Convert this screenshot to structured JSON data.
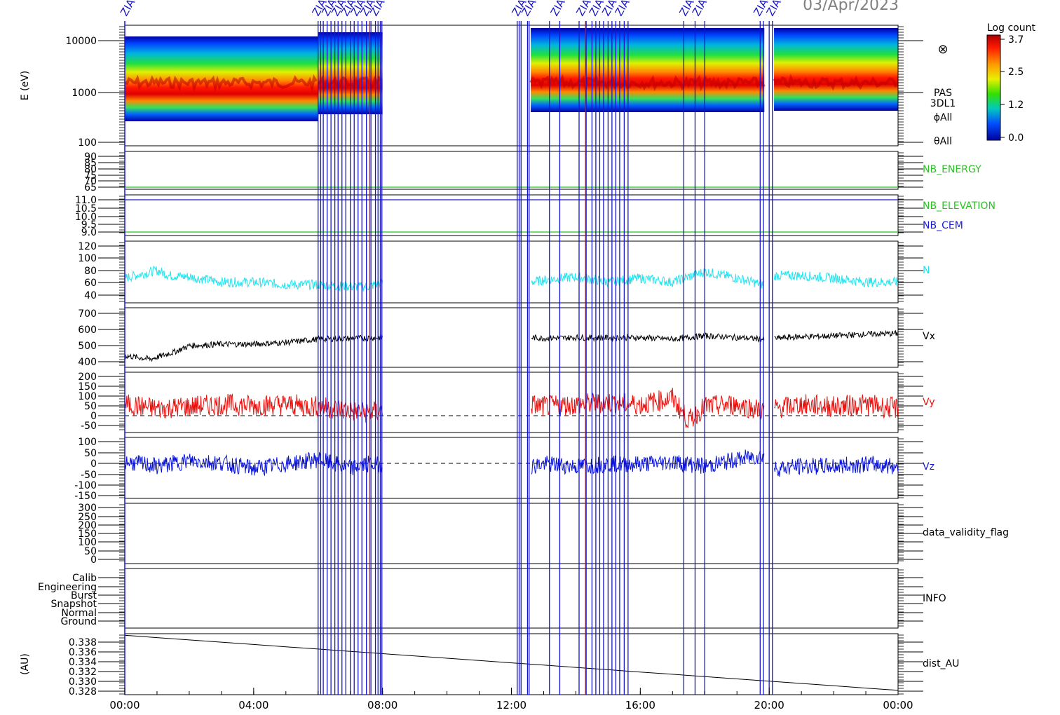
{
  "header": {
    "date": "03/Apr/2023"
  },
  "colorbar": {
    "title": "Log count",
    "ticks": [
      "3.7",
      "2.5",
      "1.2",
      "0.0"
    ],
    "range": [
      0.0,
      3.7
    ]
  },
  "x_ticks": [
    "00:00",
    "04:00",
    "08:00",
    "12:00",
    "16:00",
    "20:00",
    "00:00"
  ],
  "event_marker_label": "ZIAC",
  "event_vlines_hours": [
    6.0,
    6.08,
    6.16,
    6.28,
    6.4,
    6.52,
    6.62,
    6.74,
    6.86,
    7.0,
    7.12,
    7.24,
    7.36,
    7.5,
    7.64,
    7.78,
    7.86,
    7.93,
    7.98,
    12.18,
    12.24,
    12.3,
    12.5,
    12.55,
    13.18,
    13.5,
    14.1,
    14.32,
    14.5,
    14.62,
    14.74,
    14.86,
    15.0,
    15.12,
    15.24,
    15.36,
    15.5,
    15.62,
    17.35,
    17.7,
    18.0,
    19.72,
    19.82,
    20.0,
    20.1
  ],
  "event_vlines_red_hours": [
    7.6,
    14.3
  ],
  "panels": [
    {
      "id": "pas",
      "ylabel": "E (eV)",
      "yticks": [
        "10000",
        "1000",
        "100"
      ],
      "scale": "log",
      "right_labels": [
        "PAS",
        "3DL1",
        "ϕAll",
        "θAll"
      ],
      "symbol": "⊗"
    },
    {
      "id": "nb_energy",
      "yticks": [
        "90",
        "85",
        "80",
        "75",
        "70",
        "65"
      ],
      "right_labels": [
        "NB_ENERGY"
      ]
    },
    {
      "id": "nb_elev",
      "yticks": [
        "11.0",
        "10.5",
        "10.0",
        "9.5",
        "9.0"
      ],
      "right_labels": [
        "NB_ELEVATION",
        "NB_CEM"
      ]
    },
    {
      "id": "n",
      "yticks": [
        "120",
        "100",
        "80",
        "60",
        "40"
      ],
      "right_labels": [
        "N"
      ]
    },
    {
      "id": "vx",
      "yticks": [
        "700",
        "600",
        "500",
        "400"
      ],
      "right_labels": [
        "Vx"
      ]
    },
    {
      "id": "vy",
      "yticks": [
        "200",
        "150",
        "100",
        "50",
        "0",
        "-50"
      ],
      "right_labels": [
        "Vy"
      ]
    },
    {
      "id": "vz",
      "yticks": [
        "100",
        "50",
        "0",
        "-50",
        "-100",
        "-150"
      ],
      "right_labels": [
        "Vz"
      ]
    },
    {
      "id": "dvf",
      "yticks": [
        "300",
        "250",
        "200",
        "150",
        "100",
        "50",
        "0"
      ],
      "right_labels": [
        "data_validity_flag"
      ]
    },
    {
      "id": "info",
      "yticks": [
        "Calib",
        "Engineering",
        "Burst",
        "Snapshot",
        "Normal",
        "Ground"
      ],
      "right_labels": [
        "INFO"
      ]
    },
    {
      "id": "dist",
      "ylabel": "(AU)",
      "yticks": [
        "0.338",
        "0.336",
        "0.334",
        "0.332",
        "0.330",
        "0.328"
      ],
      "right_labels": [
        "dist_AU"
      ]
    }
  ],
  "chart_data": {
    "type": "line",
    "x_unit": "hours UT",
    "x_range": [
      0,
      24
    ],
    "gaps_hours": [
      [
        8.0,
        12.6
      ],
      [
        19.85,
        20.15
      ]
    ],
    "series": [
      {
        "name": "N",
        "color": "#22e5f0",
        "ylim": [
          30,
          125
        ],
        "x": [
          0,
          1,
          1.4,
          2,
          3,
          4,
          5,
          6,
          7,
          7.5,
          8,
          12.6,
          13,
          14,
          15,
          16,
          17,
          18,
          19,
          19.8,
          20.2,
          21,
          22,
          23,
          24
        ],
        "y": [
          68,
          80,
          72,
          70,
          62,
          62,
          58,
          58,
          55,
          55,
          60,
          62,
          65,
          70,
          62,
          68,
          62,
          78,
          68,
          58,
          72,
          72,
          68,
          62,
          62
        ]
      },
      {
        "name": "Vx",
        "color": "#000000",
        "ylim": [
          370,
          730
        ],
        "x": [
          0,
          0.8,
          1.5,
          2,
          3,
          4,
          5,
          6,
          7,
          8,
          12.6,
          13,
          14,
          15,
          16,
          17,
          18,
          19,
          19.8,
          20.2,
          21,
          22,
          23,
          24
        ],
        "y": [
          440,
          420,
          460,
          500,
          510,
          510,
          520,
          540,
          545,
          550,
          550,
          545,
          550,
          548,
          550,
          540,
          560,
          550,
          540,
          545,
          555,
          560,
          570,
          575
        ]
      },
      {
        "name": "Vy",
        "color": "#e8120e",
        "ylim": [
          -75,
          215
        ],
        "x": [
          0,
          1,
          2,
          3,
          4,
          5,
          6,
          7,
          7.5,
          8,
          12.6,
          13,
          14,
          15,
          16,
          17,
          17.5,
          18,
          19,
          19.8,
          20.2,
          21,
          22,
          23,
          24
        ],
        "y": [
          60,
          40,
          50,
          60,
          55,
          60,
          50,
          30,
          20,
          30,
          60,
          50,
          60,
          70,
          60,
          90,
          -20,
          50,
          60,
          30,
          40,
          60,
          50,
          60,
          40
        ]
      },
      {
        "name": "Vz",
        "color": "#0a14d8",
        "ylim": [
          -165,
          110
        ],
        "x": [
          0,
          1,
          2,
          3,
          4,
          5,
          6,
          7,
          7.5,
          8,
          12.6,
          13,
          14,
          15,
          16,
          17,
          18,
          19,
          19.8,
          20.2,
          21,
          22,
          23,
          24
        ],
        "y": [
          0,
          -20,
          5,
          -5,
          -30,
          -10,
          10,
          -30,
          -10,
          -10,
          -20,
          -10,
          -20,
          -10,
          -10,
          0,
          -20,
          10,
          30,
          -30,
          -20,
          -20,
          -10,
          -20
        ]
      },
      {
        "name": "dist_AU",
        "color": "#000000",
        "ylim": [
          0.3275,
          0.3388
        ],
        "x": [
          0,
          24
        ],
        "y": [
          0.3385,
          0.3283
        ]
      }
    ],
    "spectrogram": {
      "name": "PAS E (eV)",
      "ylim_ev": [
        100,
        20000
      ],
      "peak_ev": 1500,
      "blocks_hours": [
        [
          0,
          6.0
        ],
        [
          6.0,
          8.0
        ],
        [
          12.6,
          19.85
        ],
        [
          20.15,
          24
        ]
      ]
    },
    "constant_lines": [
      {
        "panel": "nb_energy",
        "value": 65,
        "color": "#22c41e"
      },
      {
        "panel": "nb_elev",
        "value": 9.0,
        "color": "#22c41e"
      },
      {
        "panel": "nb_elev",
        "value": 11.0,
        "color": "#1a1acc"
      }
    ]
  }
}
